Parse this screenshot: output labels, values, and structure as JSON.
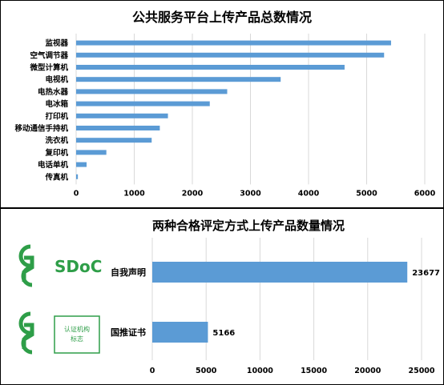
{
  "chart_data": [
    {
      "type": "bar",
      "orientation": "horizontal",
      "title": "公共服务平台上传产品总数情况",
      "categories": [
        "监视器",
        "空气调节器",
        "微型计算机",
        "电视机",
        "电热水器",
        "电冰箱",
        "打印机",
        "移动通信手持机",
        "洗衣机",
        "复印机",
        "电话单机",
        "传真机"
      ],
      "values": [
        5420,
        5300,
        4620,
        3520,
        2600,
        2300,
        1580,
        1440,
        1300,
        520,
        180,
        30
      ],
      "xlim": [
        0,
        6000
      ],
      "xticks": [
        0,
        1000,
        2000,
        3000,
        4000,
        5000,
        6000
      ],
      "grid": true,
      "color": "#5b9bd5"
    },
    {
      "type": "bar",
      "orientation": "horizontal",
      "title": "两种合格评定方式上传产品数量情况",
      "categories": [
        "自我声明",
        "国推证书"
      ],
      "values": [
        23677,
        5166
      ],
      "data_labels": [
        "23677",
        "5166"
      ],
      "xlim": [
        0,
        25000
      ],
      "xticks": [
        0,
        5000,
        10000,
        15000,
        20000,
        25000
      ],
      "grid": true,
      "color": "#5b9bd5"
    }
  ],
  "logos": {
    "sdoc_text": "SDoC",
    "cert_text_line1": "认证机构",
    "cert_text_line2": "标志",
    "logo_color": "#2e9e48"
  }
}
